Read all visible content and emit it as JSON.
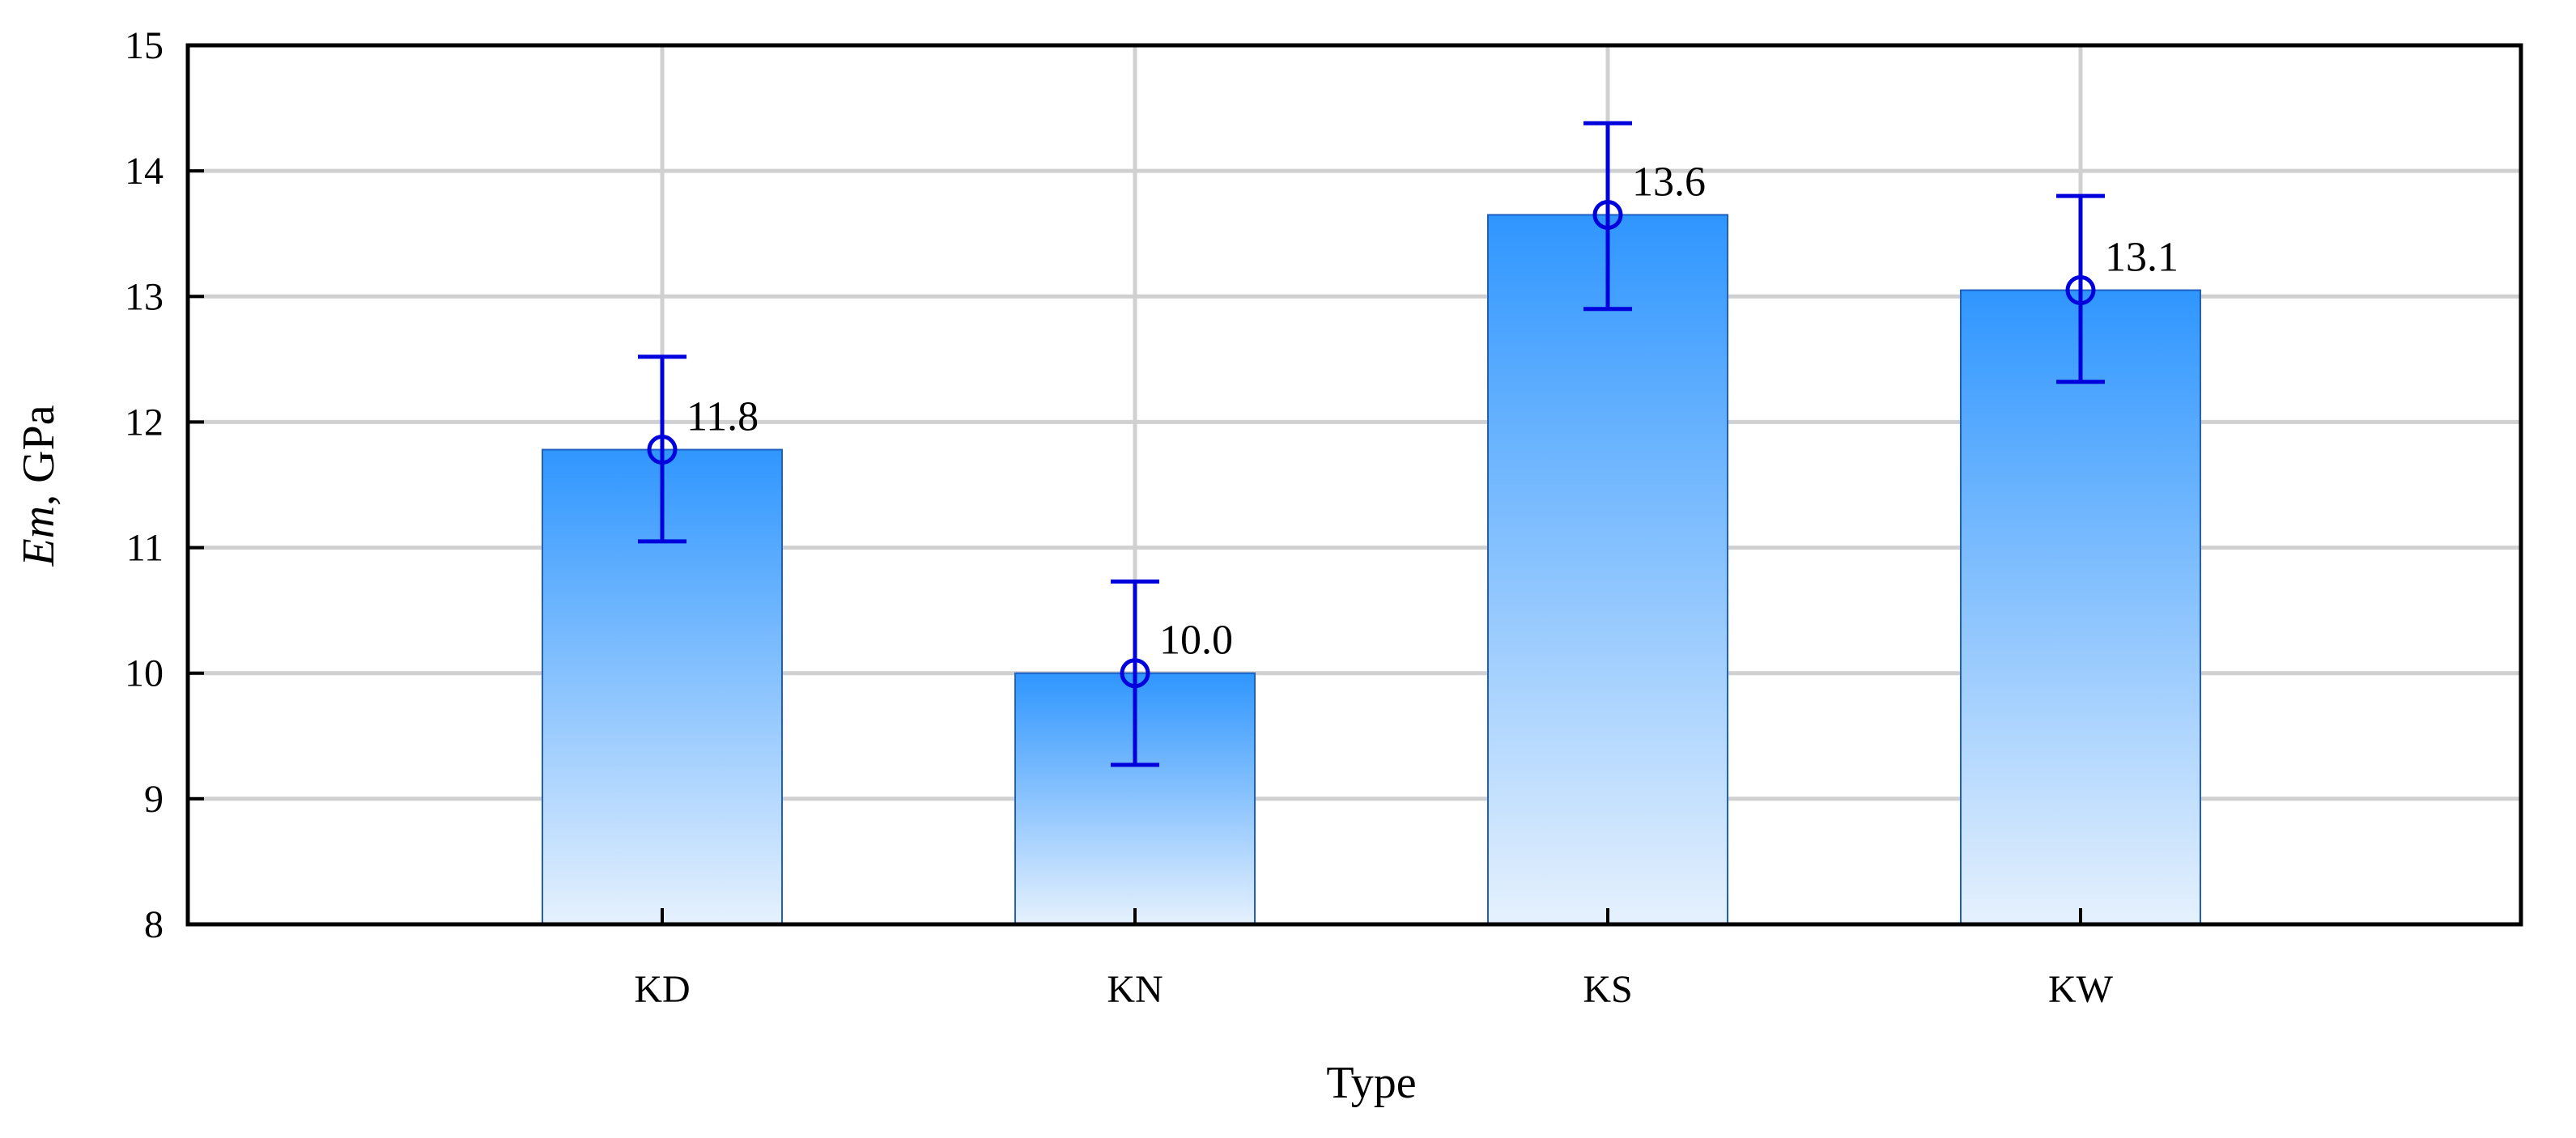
{
  "chart_data": {
    "type": "bar",
    "categories": [
      "KD",
      "KN",
      "KS",
      "KW"
    ],
    "values": [
      11.78,
      10.0,
      13.65,
      13.05
    ],
    "error_low": [
      11.05,
      9.27,
      12.9,
      12.32
    ],
    "error_high": [
      12.52,
      10.73,
      14.38,
      13.8
    ],
    "data_labels": [
      "11.8",
      "10.0",
      "13.6",
      "13.1"
    ],
    "xlabel": "Type",
    "ylabel_italic": "Em",
    "ylabel_rest": ", GPa",
    "ylim": [
      8,
      15
    ],
    "yticks": [
      8,
      9,
      10,
      11,
      12,
      13,
      14,
      15
    ],
    "grid": true,
    "bar_color_top": "#2f96ff",
    "bar_color_bottom": "#e6f1fd",
    "bar_edge_color": "#1e5fbf",
    "error_color": "#0000dd",
    "grid_color": "#d0d0d0",
    "axis_color": "#000000"
  }
}
